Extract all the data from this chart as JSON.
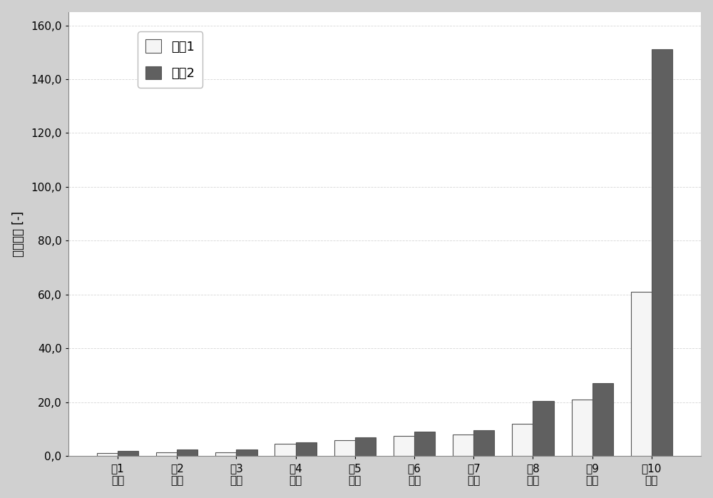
{
  "categories": [
    "第1\n循环",
    "第2\n循环",
    "第3\n循环",
    "第4\n循环",
    "第5\n循环",
    "第6\n循环",
    "第7\n循环",
    "第8\n循环",
    "第9\n循环",
    "第10\n循环"
  ],
  "sample1": [
    1.0,
    1.5,
    1.5,
    4.5,
    6.0,
    7.5,
    8.0,
    12.0,
    21.0,
    61.0
  ],
  "sample2": [
    2.0,
    2.5,
    2.5,
    5.0,
    7.0,
    9.0,
    9.5,
    20.5,
    27.0,
    151.0
  ],
  "ylabel": "净化因子 [-]",
  "ylim": [
    0,
    165
  ],
  "yticks": [
    0.0,
    20.0,
    40.0,
    60.0,
    80.0,
    100.0,
    120.0,
    140.0,
    160.0
  ],
  "ytick_labels": [
    "0,0",
    "20,0",
    "40,0",
    "60,0",
    "80,0",
    "100,0",
    "120,0",
    "140,0",
    "160,0"
  ],
  "legend1": "样哈1",
  "legend2": "样哈2",
  "bar_color1": "#f5f5f5",
  "bar_color2": "#606060",
  "bar_edgecolor": "#555555",
  "plot_bg_color": "#ffffff",
  "fig_bg_color": "#d0d0d0",
  "grid_color": "#cccccc",
  "bar_width": 0.35
}
